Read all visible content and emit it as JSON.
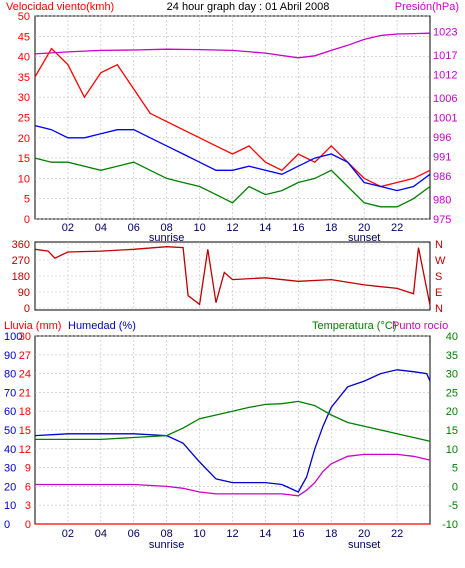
{
  "header": {
    "title": "24 hour graph day : 01 Abril 2008"
  },
  "colors": {
    "background": "#ffffff",
    "grid": "#c0c0c0",
    "wind_gust": "#ff0000",
    "wind_avg": "#0000ff",
    "wind_green": "#008000",
    "pressure": "#cc00cc",
    "direction": "#c00000",
    "humidity": "#0000cc",
    "temperature": "#008000",
    "dewpoint": "#cc00cc",
    "rain": "#ff0000"
  },
  "chart_data": [
    {
      "type": "line",
      "title": "24 hour graph day : 01 Abril 2008",
      "left_label": "Velocidad viento(kmh)",
      "right_label": "Presión(hPa)",
      "x_ticks": [
        "02",
        "04",
        "06",
        "08",
        "10",
        "12",
        "14",
        "16",
        "18",
        "20",
        "22"
      ],
      "x_range": [
        0,
        24
      ],
      "sunrise_label": "sunrise",
      "sunset_label": "sunset",
      "sunrise_hour": 8,
      "sunset_hour": 20,
      "y_left": {
        "ticks": [
          "0",
          "5",
          "10",
          "15",
          "20",
          "25",
          "30",
          "35",
          "40",
          "45",
          "50"
        ],
        "range": [
          0,
          50
        ]
      },
      "y_right": {
        "ticks": [
          "975",
          "980",
          "986",
          "991",
          "996",
          "1001",
          "1006",
          "1012",
          "1017",
          "1023"
        ],
        "range": [
          975,
          1027
        ]
      },
      "grid": true,
      "series": [
        {
          "color_key": "wind_gust",
          "x": [
            0,
            1,
            2,
            3,
            4,
            5,
            6,
            7,
            8,
            9,
            10,
            11,
            12,
            13,
            14,
            15,
            16,
            17,
            18,
            19,
            20,
            21,
            22,
            23,
            24
          ],
          "values": [
            35,
            42,
            38,
            30,
            36,
            38,
            32,
            26,
            24,
            22,
            20,
            18,
            16,
            18,
            14,
            12,
            16,
            14,
            18,
            14,
            10,
            8,
            9,
            10,
            12
          ]
        },
        {
          "color_key": "wind_avg",
          "x": [
            0,
            1,
            2,
            3,
            4,
            5,
            6,
            7,
            8,
            9,
            10,
            11,
            12,
            13,
            14,
            15,
            16,
            17,
            18,
            19,
            20,
            21,
            22,
            23,
            24
          ],
          "values": [
            23,
            22,
            20,
            20,
            21,
            22,
            22,
            20,
            18,
            16,
            14,
            12,
            12,
            13,
            12,
            11,
            13,
            15,
            16,
            14,
            9,
            8,
            7,
            8,
            11
          ]
        },
        {
          "color_key": "wind_green",
          "x": [
            0,
            1,
            2,
            3,
            4,
            5,
            6,
            7,
            8,
            9,
            10,
            11,
            12,
            13,
            14,
            15,
            16,
            17,
            18,
            19,
            20,
            21,
            22,
            23,
            24
          ],
          "values": [
            15,
            14,
            14,
            13,
            12,
            13,
            14,
            12,
            10,
            9,
            8,
            6,
            4,
            8,
            6,
            7,
            9,
            10,
            12,
            8,
            4,
            3,
            3,
            5,
            8
          ]
        },
        {
          "color_key": "pressure",
          "x": [
            0,
            2,
            4,
            6,
            8,
            10,
            12,
            14,
            16,
            17,
            18,
            19,
            20,
            21,
            22,
            23,
            24
          ],
          "values": [
            1017.3,
            1017.8,
            1018.2,
            1018.3,
            1018.5,
            1018.4,
            1018.2,
            1017.5,
            1016.3,
            1016.8,
            1018.2,
            1019.5,
            1021,
            1022,
            1022.4,
            1022.5,
            1022.6
          ]
        }
      ]
    },
    {
      "type": "line",
      "y_ticks": [
        "360",
        "270",
        "180",
        "90",
        "0"
      ],
      "y_range": [
        0,
        360
      ],
      "right_letters": [
        "N",
        "W",
        "S",
        "E",
        "N"
      ],
      "grid": true,
      "series": [
        {
          "color_key": "direction",
          "x": [
            0,
            0.8,
            1.2,
            2,
            4,
            6,
            8,
            9,
            9.3,
            10,
            10.5,
            11,
            11.5,
            12,
            14,
            16,
            18,
            20,
            22,
            23,
            23.3,
            24
          ],
          "values": [
            330,
            320,
            280,
            315,
            320,
            330,
            345,
            340,
            70,
            20,
            330,
            30,
            200,
            160,
            170,
            150,
            160,
            130,
            110,
            80,
            340,
            15
          ]
        }
      ]
    },
    {
      "type": "line",
      "left_labels": [
        "Lluvia (mm)",
        "Humedad (%)"
      ],
      "right_labels": [
        "Temperatura (°C)",
        "Punto rocío"
      ],
      "x_ticks": [
        "02",
        "04",
        "06",
        "08",
        "10",
        "12",
        "14",
        "16",
        "18",
        "20",
        "22"
      ],
      "x_range": [
        0,
        24
      ],
      "sunrise_label": "sunrise",
      "sunset_label": "sunset",
      "sunrise_hour": 8,
      "sunset_hour": 20,
      "y_humidity": {
        "ticks": [
          "0",
          "10",
          "20",
          "30",
          "40",
          "50",
          "60",
          "70",
          "80",
          "90",
          "100"
        ],
        "range": [
          0,
          100
        ]
      },
      "y_rain": {
        "ticks": [
          "0",
          "3",
          "6",
          "9",
          "12",
          "15",
          "18",
          "21",
          "24",
          "27",
          "30"
        ],
        "range": [
          0,
          30
        ]
      },
      "y_temp": {
        "ticks": [
          "-10",
          "-5",
          "0",
          "5",
          "10",
          "15",
          "20",
          "25",
          "30",
          "35",
          "40"
        ],
        "range": [
          -10,
          40
        ]
      },
      "grid": true,
      "series": [
        {
          "color_key": "humidity",
          "x": [
            0,
            2,
            4,
            6,
            8,
            9,
            10,
            11,
            12,
            13,
            14,
            15,
            16,
            16.5,
            17,
            17.5,
            18,
            19,
            20,
            21,
            22,
            23,
            23.8,
            24
          ],
          "values": [
            47,
            48,
            48,
            48,
            47,
            43,
            33,
            24,
            22,
            22,
            22,
            21,
            17,
            25,
            40,
            52,
            62,
            73,
            76,
            80,
            82,
            81,
            80,
            76
          ]
        },
        {
          "color_key": "temperature",
          "x": [
            0,
            2,
            4,
            6,
            8,
            9,
            10,
            11,
            12,
            13,
            14,
            15,
            16,
            17,
            18,
            19,
            20,
            21,
            22,
            23,
            24
          ],
          "values": [
            12.5,
            12.5,
            12.5,
            13,
            13.5,
            15.5,
            18,
            19,
            20,
            21,
            21.8,
            22,
            22.6,
            21.5,
            19,
            17,
            16,
            15,
            14,
            13,
            12
          ]
        },
        {
          "color_key": "dewpoint",
          "x": [
            0,
            2,
            4,
            6,
            8,
            9,
            10,
            11,
            12,
            13,
            14,
            15,
            16,
            16.5,
            17,
            17.5,
            18,
            19,
            20,
            21,
            22,
            23,
            24
          ],
          "values": [
            0.5,
            0.5,
            0.5,
            0.5,
            0,
            -0.5,
            -1.5,
            -2,
            -2,
            -2,
            -2,
            -2,
            -2.5,
            -1,
            1,
            4,
            6,
            8,
            8.5,
            8.5,
            8.5,
            8,
            7
          ]
        },
        {
          "color_key": "rain",
          "x": [
            0,
            24
          ],
          "values": [
            0,
            0
          ]
        }
      ]
    }
  ]
}
